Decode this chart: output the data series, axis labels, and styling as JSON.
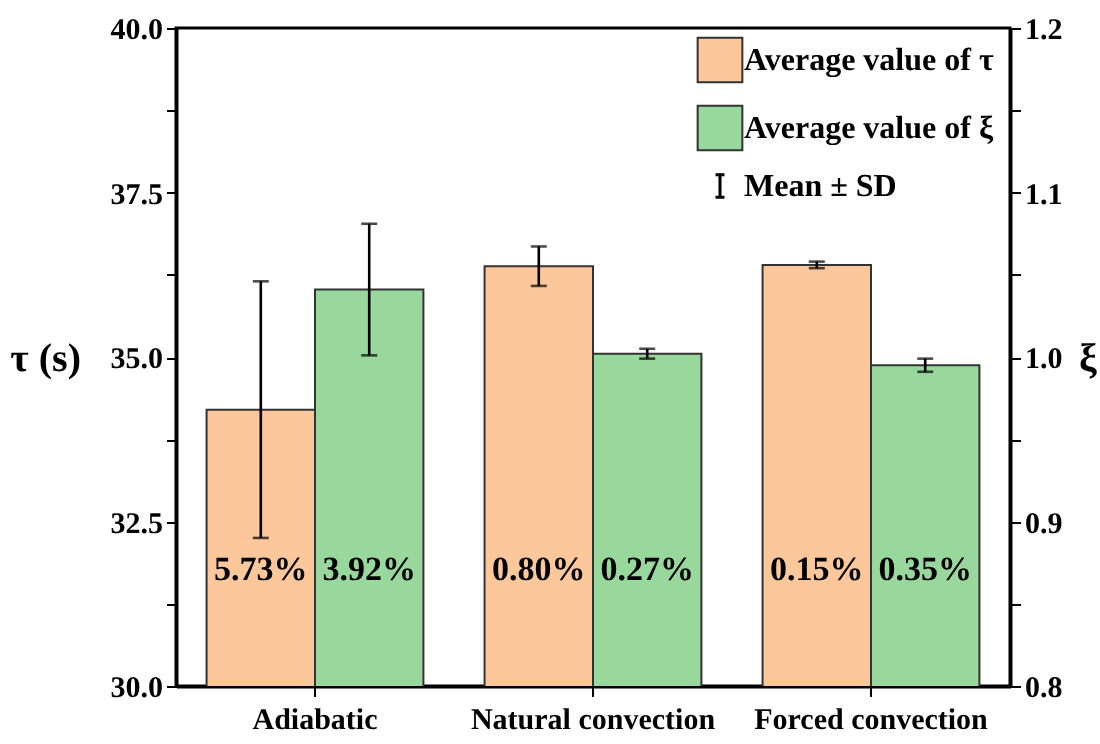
{
  "chart_data": {
    "type": "bar",
    "ylabel": "τ (s)",
    "y2label": "ξ",
    "categories": [
      "Adiabatic",
      "Natural convection",
      "Forced convection"
    ],
    "series": [
      {
        "name": "Average value of τ",
        "color": "#fcc89b",
        "values": [
          34.2,
          36.38,
          36.4
        ],
        "errors": [
          1.95,
          0.3,
          0.05
        ]
      },
      {
        "name": "Average value of ξ",
        "color": "#99d89c",
        "axis": "y2",
        "values": [
          1.041,
          1.002,
          0.995
        ],
        "errors": [
          0.04,
          0.003,
          0.004
        ]
      }
    ],
    "ylim": [
      30,
      40
    ],
    "yticks": [
      {
        "value": 30,
        "label": "30.0"
      },
      {
        "value": 31.25,
        "label": null
      },
      {
        "value": 32.5,
        "label": "32.5"
      },
      {
        "value": 33.75,
        "label": null
      },
      {
        "value": 35,
        "label": "35.0"
      },
      {
        "value": 36.25,
        "label": null
      },
      {
        "value": 37.5,
        "label": "37.5"
      },
      {
        "value": 38.75,
        "label": null
      },
      {
        "value": 40,
        "label": "40.0"
      }
    ],
    "y2lim": [
      0.8,
      1.2
    ],
    "y2ticks": [
      0.8,
      {
        "value": 0.85,
        "label": null
      },
      0.9,
      {
        "value": 0.95,
        "label": null
      },
      {
        "value": 1.0,
        "label": "1.0"
      },
      {
        "value": 1.05,
        "label": null
      },
      1.1,
      {
        "value": 1.15,
        "label": null
      },
      1.2
    ],
    "annotations": [
      "Mean ± SD",
      {
        "text": "5.73%",
        "x": "Adiabatic"
      },
      {
        "text": "3.92%",
        "x": "Adiabatic"
      },
      {
        "text": "0.80%",
        "x": "Natural convection"
      },
      {
        "text": "0.27%",
        "x": "Natural convection"
      },
      {
        "text": "0.15%",
        "x": "Forced convection"
      },
      {
        "text": "0.35%",
        "x": "Forced convection"
      }
    ],
    "legend": "top right",
    "grid": false
  }
}
